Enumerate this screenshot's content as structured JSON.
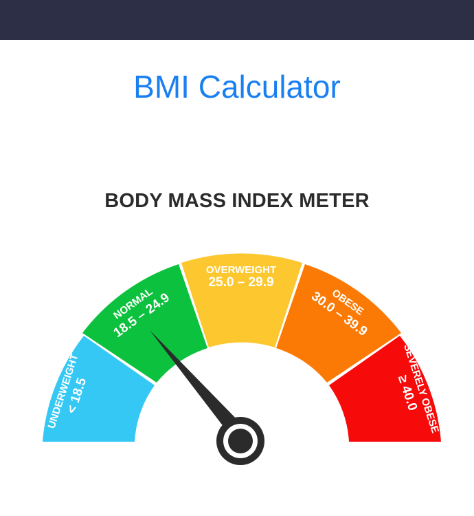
{
  "header": {
    "bar_color": "#2d2f46"
  },
  "app": {
    "title": "BMI Calculator",
    "title_color": "#1a7ff0"
  },
  "meter": {
    "heading": "BODY MASS INDEX METER",
    "segments": [
      {
        "id": "underweight",
        "name": "UNDERWEIGHT",
        "range": "< 18.5",
        "color": "#35c8f5"
      },
      {
        "id": "normal",
        "name": "NORMAL",
        "range": "18.5 – 24.9",
        "color": "#0cc13d"
      },
      {
        "id": "overweight",
        "name": "OVERWEIGHT",
        "range": "25.0 – 29.9",
        "color": "#fcc72f"
      },
      {
        "id": "obese",
        "name": "OBESE",
        "range": "30.0 – 39.9",
        "color": "#fb7a06"
      },
      {
        "id": "severely-obese",
        "name": "SEVERELY OBESE",
        "range": "≥ 40.0",
        "color": "#f60a0a"
      }
    ],
    "needle": {
      "pointing_at": "normal",
      "color": "#2b2b2b"
    }
  }
}
